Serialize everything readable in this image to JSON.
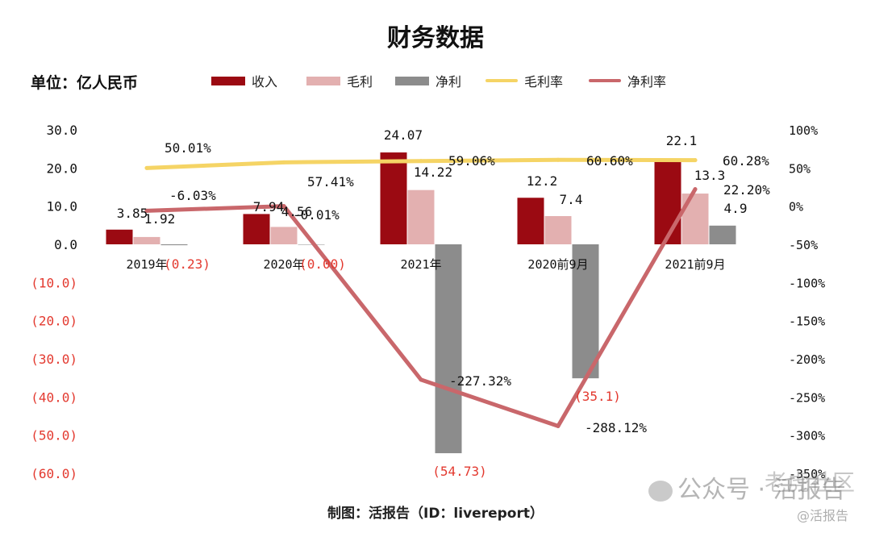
{
  "title": "财务数据",
  "unit_label": "单位：亿人民币",
  "credit": "制图：活报告（ID：livereport）",
  "watermark": {
    "main": "公众号 · 活报告",
    "sub": "@活报告",
    "overlay": "老虎社区"
  },
  "colors": {
    "revenue": "#9b0a12",
    "gross": "#e3b0b0",
    "net": "#8c8c8c",
    "gross_margin": "#f5d465",
    "net_margin": "#c9676b",
    "negative_label": "#e3392f",
    "text": "#111111"
  },
  "legend": [
    {
      "label": "收入",
      "kind": "bar",
      "color_key": "revenue"
    },
    {
      "label": "毛利",
      "kind": "bar",
      "color_key": "gross"
    },
    {
      "label": "净利",
      "kind": "bar",
      "color_key": "net"
    },
    {
      "label": "毛利率",
      "kind": "line",
      "color_key": "gross_margin"
    },
    {
      "label": "净利率",
      "kind": "line",
      "color_key": "net_margin"
    }
  ],
  "chart_data": {
    "type": "bar",
    "categories": [
      "2019年",
      "2020年",
      "2021年",
      "2020前9月",
      "2021前9月"
    ],
    "series": [
      {
        "name": "收入",
        "values": [
          3.85,
          7.94,
          24.07,
          12.2,
          22.1
        ],
        "labels": [
          "3.85",
          "7.94",
          "24.07",
          "12.2",
          "22.1"
        ]
      },
      {
        "name": "毛利",
        "values": [
          1.92,
          4.56,
          14.22,
          7.4,
          13.3
        ],
        "labels": [
          "1.92",
          "4.56",
          "14.22",
          "7.4",
          "13.3"
        ]
      },
      {
        "name": "净利",
        "values": [
          -0.23,
          0.0,
          -54.73,
          -35.1,
          4.9
        ],
        "labels": [
          "(0.23)",
          "(0.00)",
          "(54.73)",
          "(35.1)",
          "4.9"
        ]
      }
    ],
    "line_series": [
      {
        "name": "毛利率",
        "axis": "right",
        "values": [
          50.01,
          57.41,
          59.06,
          60.6,
          60.28
        ],
        "labels": [
          "50.01%",
          "57.41%",
          "59.06%",
          "60.60%",
          "60.28%"
        ]
      },
      {
        "name": "净利率",
        "axis": "right",
        "values": [
          -6.03,
          -0.01,
          -227.32,
          -288.12,
          22.2
        ],
        "labels": [
          "-6.03%",
          "-0.01%",
          "-227.32%",
          "-288.12%",
          "22.20%"
        ]
      }
    ],
    "y_left": {
      "min": -60,
      "max": 30,
      "step": 10,
      "ticks": [
        "30.0",
        "20.0",
        "10.0",
        "0.0",
        "(10.0)",
        "(20.0)",
        "(30.0)",
        "(40.0)",
        "(50.0)",
        "(60.0)"
      ]
    },
    "y_right": {
      "min": -350,
      "max": 100,
      "step": 50,
      "ticks": [
        "100%",
        "50%",
        "0%",
        "-50%",
        "-100%",
        "-150%",
        "-200%",
        "-250%",
        "-300%",
        "-350%"
      ]
    },
    "grid": false,
    "legend_position": "top"
  }
}
